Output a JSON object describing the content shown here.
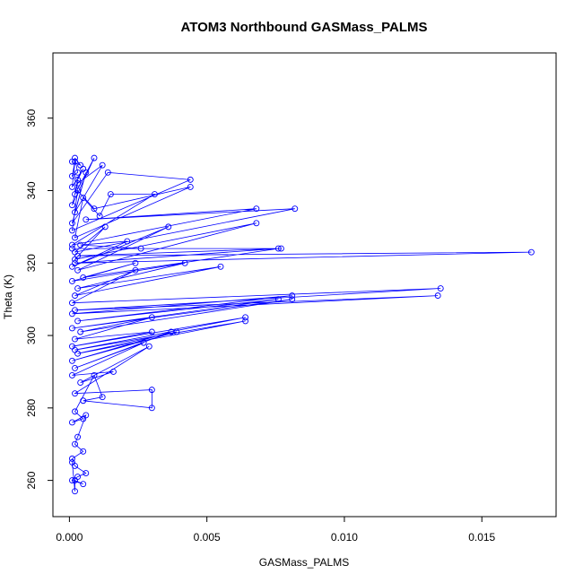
{
  "chart_data": {
    "type": "scatter",
    "title": "ATOM3 Northbound GASMass_PALMS",
    "xlabel": "GASMass_PALMS",
    "ylabel": "Theta (K)",
    "xlim": [
      -0.0006,
      0.0177
    ],
    "ylim": [
      250,
      378
    ],
    "x_ticks": [
      0.0,
      0.005,
      0.01,
      0.015
    ],
    "x_tick_labels": [
      "0.000",
      "0.005",
      "0.010",
      "0.015"
    ],
    "y_ticks": [
      260,
      280,
      300,
      320,
      340,
      360
    ],
    "y_tick_labels": [
      "260",
      "280",
      "300",
      "320",
      "340",
      "360"
    ],
    "grid": false,
    "legend": "none",
    "marker": "open-circle",
    "connected": true,
    "colors": {
      "series": "#0000ff",
      "axis": "#000000",
      "background": "#ffffff"
    },
    "series": [
      {
        "x": [
          0.0001,
          0.0004,
          0.0002,
          0.0003,
          0.0001,
          0.0002,
          0.0001,
          0.0005,
          0.0003,
          0.0002,
          0.0009,
          0.0001,
          0.0003,
          0.0012,
          0.0002,
          0.0006,
          0.0001,
          0.0014,
          0.0044,
          0.0001,
          0.0003,
          0.0009,
          0.0044,
          0.0002,
          0.0005,
          0.0011,
          0.0015,
          0.0031,
          0.0001,
          0.0068,
          0.0006,
          0.0082,
          0.0002,
          0.0013,
          0.0002,
          0.0068,
          0.0003,
          0.0036,
          0.0001,
          0.0021,
          0.0004,
          0.0026,
          0.0001,
          0.0077,
          0.0003,
          0.0168,
          0.0002,
          0.0076,
          0.0005,
          0.0024,
          0.0001,
          0.0042,
          0.0003,
          0.0055,
          0.0002,
          0.0024,
          0.0001,
          0.0135,
          0.0002,
          0.0134,
          0.0001,
          0.0081,
          0.0003,
          0.0076,
          0.0001,
          0.0081,
          0.0004,
          0.003,
          0.0002,
          0.003,
          0.0001,
          0.0064,
          0.0002,
          0.0064,
          0.0003,
          0.0039,
          0.0001,
          0.0037,
          0.0002,
          0.0027,
          0.0001,
          0.0016,
          0.0004,
          0.0029,
          0.0002,
          0.003,
          0.003,
          0.0005,
          0.0012,
          0.0009,
          0.0002,
          0.0005,
          0.0001,
          0.0006,
          0.0003,
          0.0002,
          0.0005,
          0.0001,
          0.0002,
          0.0006,
          0.0003,
          0.0001,
          0.0005,
          0.0002,
          0.0002,
          0.0001
        ],
        "y": [
          348,
          347,
          349,
          345,
          344,
          348,
          341,
          346,
          343,
          339,
          349,
          336,
          342,
          347,
          334,
          345,
          331,
          345,
          343,
          329,
          340,
          335,
          341,
          327,
          338,
          333,
          339,
          339,
          325,
          335,
          332,
          335,
          323,
          330,
          321,
          331,
          318,
          330,
          319,
          326,
          325,
          324,
          324,
          324,
          322,
          323,
          320,
          324,
          316,
          320,
          315,
          320,
          313,
          319,
          311,
          318,
          309,
          313,
          307,
          311,
          306,
          311,
          304,
          310,
          302,
          310,
          301,
          305,
          299,
          301,
          297,
          305,
          296,
          304,
          295,
          301,
          293,
          301,
          291,
          298,
          289,
          290,
          287,
          297,
          284,
          285,
          280,
          282,
          283,
          289,
          279,
          277,
          276,
          278,
          272,
          270,
          268,
          266,
          264,
          262,
          261,
          260,
          259,
          260,
          257,
          265
        ]
      }
    ]
  }
}
